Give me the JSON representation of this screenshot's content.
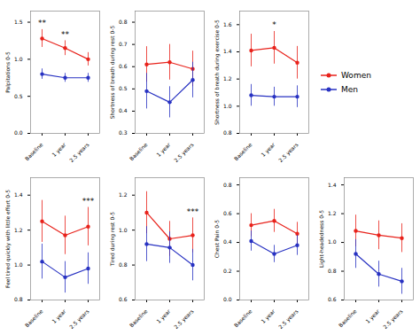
{
  "chart_data": [
    {
      "type": "line",
      "y_label": "Palpitations 0-5",
      "categories": [
        "Baseline",
        "1 year",
        "2.5 years"
      ],
      "series": [
        {
          "name": "Women",
          "color": "#E8221B",
          "marker": "circle",
          "values": [
            1.28,
            1.15,
            1.0
          ],
          "errors": [
            0.12,
            0.1,
            0.09
          ]
        },
        {
          "name": "Men",
          "color": "#2832C2",
          "marker": "circle",
          "values": [
            0.8,
            0.75,
            0.75
          ],
          "errors": [
            0.07,
            0.06,
            0.06
          ]
        }
      ],
      "ylim": [
        0.0,
        1.65
      ],
      "yticks": [
        {
          "value": 0.0,
          "label": "0.0"
        },
        0.5,
        {
          "value": 1.0,
          "label": "1.0"
        },
        1.5
      ],
      "annotations": [
        {
          "text": "**",
          "x": "Baseline",
          "series": "Women"
        },
        {
          "text": "**",
          "x": "1 year",
          "series": "Women"
        }
      ],
      "grid": false
    },
    {
      "type": "line",
      "y_label": "Shortness of breath during rest 0-5",
      "categories": [
        "Baseline",
        "1 year",
        "2.5 years"
      ],
      "series": [
        {
          "name": "Women",
          "color": "#E8221B",
          "marker": "circle",
          "values": [
            0.61,
            0.62,
            0.59
          ],
          "errors": [
            0.08,
            0.08,
            0.08
          ]
        },
        {
          "name": "Men",
          "color": "#2832C2",
          "marker": "circle",
          "values": [
            0.49,
            0.44,
            0.54
          ],
          "errors": [
            0.08,
            0.07,
            0.08
          ]
        }
      ],
      "ylim": [
        0.3,
        0.85
      ],
      "yticks": [
        0.3,
        0.4,
        0.5,
        0.6,
        0.7,
        0.8
      ],
      "annotations": [],
      "grid": false
    },
    {
      "type": "line",
      "y_label": "Shortness of breath during exercise 0-5",
      "categories": [
        "Baseline",
        "1 year",
        "2.5 years"
      ],
      "series": [
        {
          "name": "Women",
          "color": "#E8221B",
          "marker": "circle",
          "values": [
            1.41,
            1.43,
            1.32
          ],
          "errors": [
            0.12,
            0.12,
            0.12
          ]
        },
        {
          "name": "Men",
          "color": "#2832C2",
          "marker": "circle",
          "values": [
            1.08,
            1.07,
            1.07
          ],
          "errors": [
            0.08,
            0.07,
            0.08
          ]
        }
      ],
      "ylim": [
        0.8,
        1.7
      ],
      "yticks": [
        0.8,
        {
          "value": 1.0,
          "label": "1.0"
        },
        1.2,
        1.4,
        1.6
      ],
      "annotations": [
        {
          "text": "*",
          "x": "1 year",
          "series": "Women"
        }
      ],
      "grid": false,
      "legend": "right"
    },
    {
      "type": "line",
      "y_label": "Feel tired quickly with little effort 0-5",
      "categories": [
        "Baseline",
        "1 year",
        "2.5 years"
      ],
      "series": [
        {
          "name": "Women",
          "color": "#E8221B",
          "marker": "circle",
          "values": [
            1.25,
            1.17,
            1.22
          ],
          "errors": [
            0.12,
            0.11,
            0.11
          ]
        },
        {
          "name": "Men",
          "color": "#2832C2",
          "marker": "circle",
          "values": [
            1.02,
            0.93,
            0.98
          ],
          "errors": [
            0.1,
            0.09,
            0.09
          ]
        }
      ],
      "ylim": [
        0.8,
        1.5
      ],
      "yticks": [
        0.8,
        {
          "value": 1.0,
          "label": "1.0"
        },
        1.2,
        1.4
      ],
      "annotations": [
        {
          "text": "***",
          "x": "2.5 years",
          "series": "Women"
        }
      ],
      "grid": false
    },
    {
      "type": "line",
      "y_label": "Tired during rest 0-5",
      "categories": [
        "Baseline",
        "1 year",
        "2.5 years"
      ],
      "series": [
        {
          "name": "Women",
          "color": "#E8221B",
          "marker": "circle",
          "values": [
            1.1,
            0.95,
            0.97
          ],
          "errors": [
            0.12,
            0.1,
            0.1
          ]
        },
        {
          "name": "Men",
          "color": "#2832C2",
          "marker": "circle",
          "values": [
            0.92,
            0.9,
            0.8
          ],
          "errors": [
            0.1,
            0.09,
            0.09
          ]
        }
      ],
      "ylim": [
        0.6,
        1.3
      ],
      "yticks": [
        0.6,
        0.8,
        {
          "value": 1.0,
          "label": "1.0"
        },
        1.2
      ],
      "annotations": [
        {
          "text": "***",
          "x": "2.5 years",
          "series": "Women"
        }
      ],
      "grid": false
    },
    {
      "type": "line",
      "y_label": "Chest Pain 0-5",
      "categories": [
        "Baseline",
        "1 year",
        "2.5 years"
      ],
      "series": [
        {
          "name": "Women",
          "color": "#E8221B",
          "marker": "circle",
          "values": [
            0.52,
            0.55,
            0.46
          ],
          "errors": [
            0.08,
            0.08,
            0.08
          ]
        },
        {
          "name": "Men",
          "color": "#2832C2",
          "marker": "circle",
          "values": [
            0.41,
            0.32,
            0.38
          ],
          "errors": [
            0.07,
            0.06,
            0.07
          ]
        }
      ],
      "ylim": [
        0.0,
        0.85
      ],
      "yticks": [
        {
          "value": 0.0,
          "label": "0.0"
        },
        0.2,
        0.4,
        0.6,
        0.8
      ],
      "annotations": [],
      "grid": false
    },
    {
      "type": "line",
      "y_label": "Light-headedness 0-5",
      "categories": [
        "Baseline",
        "1 year",
        "2.5 years"
      ],
      "series": [
        {
          "name": "Women",
          "color": "#E8221B",
          "marker": "circle",
          "values": [
            1.08,
            1.05,
            1.03
          ],
          "errors": [
            0.11,
            0.1,
            0.1
          ]
        },
        {
          "name": "Men",
          "color": "#2832C2",
          "marker": "circle",
          "values": [
            0.92,
            0.78,
            0.73
          ],
          "errors": [
            0.1,
            0.09,
            0.09
          ]
        }
      ],
      "ylim": [
        0.6,
        1.45
      ],
      "yticks": [
        0.6,
        0.8,
        {
          "value": 1.0,
          "label": "1.0"
        },
        1.2,
        1.4
      ],
      "annotations": [],
      "grid": false
    }
  ]
}
